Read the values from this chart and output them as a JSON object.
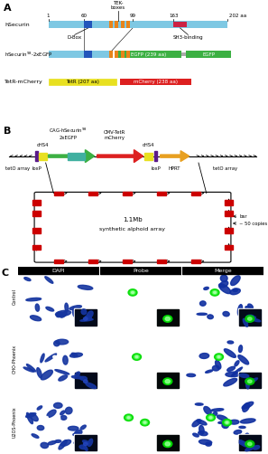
{
  "fig_width": 2.92,
  "fig_height": 5.0,
  "dpi": 100,
  "securin_color": "#7ec8e3",
  "egfp_color": "#3cb043",
  "dbox_color": "#2255bb",
  "tebox_color": "#e8841a",
  "sh3_color": "#cc2244",
  "tetr_color": "#e8e020",
  "mcherry_color": "#dd2020",
  "chs4_color": "#e8e020",
  "hprt_color": "#e8a020",
  "red_rect_color": "#cc0000",
  "loxP_color": "#5a1a8a",
  "green_arrow_color": "#3cb043",
  "red_arrow_color": "#dd2020",
  "teal_color": "#40b0a0",
  "chr_blue": "#2244aa",
  "probe_bg": "#030808"
}
